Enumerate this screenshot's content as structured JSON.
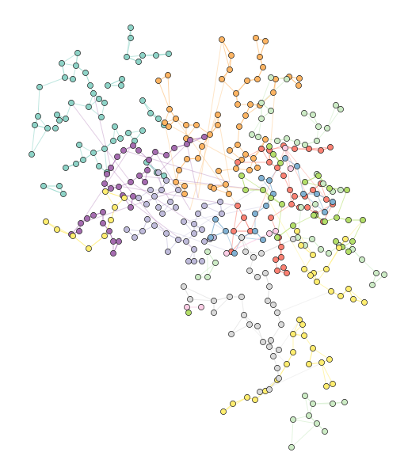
{
  "diagram": {
    "type": "network-graph",
    "background": "#ffffff",
    "node_outline": "#222222",
    "groups": [
      {
        "id": "teal",
        "color": "#8dd3c7"
      },
      {
        "id": "orange",
        "color": "#fdb462"
      },
      {
        "id": "purple",
        "color": "#a56cb0"
      },
      {
        "id": "lavender",
        "color": "#bebada"
      },
      {
        "id": "red",
        "color": "#fb8072"
      },
      {
        "id": "blue",
        "color": "#80b1d3"
      },
      {
        "id": "lightgreen",
        "color": "#ccebc5"
      },
      {
        "id": "green",
        "color": "#b3de69"
      },
      {
        "id": "yellow",
        "color": "#ffed6f"
      },
      {
        "id": "gray",
        "color": "#d9d9d9"
      },
      {
        "id": "pink",
        "color": "#fccde5"
      }
    ]
  }
}
